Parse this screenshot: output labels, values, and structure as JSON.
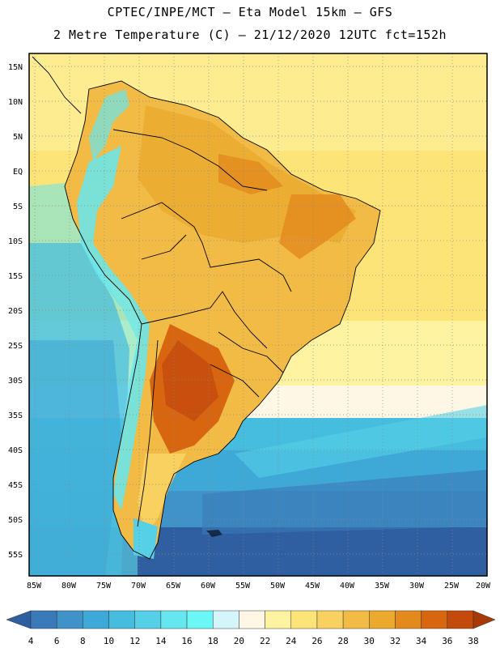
{
  "header": {
    "title_line1": "CPTEC/INPE/MCT –  Eta Model 15km – GFS",
    "title_line2": "2 Metre Temperature (C) – 21/12/2020 12UTC fct=152h"
  },
  "map": {
    "lat_labels": [
      "15N",
      "10N",
      "5N",
      "EQ",
      "5S",
      "10S",
      "15S",
      "20S",
      "25S",
      "30S",
      "35S",
      "40S",
      "45S",
      "50S",
      "55S"
    ],
    "lon_labels": [
      "85W",
      "80W",
      "75W",
      "70W",
      "65W",
      "60W",
      "55W",
      "50W",
      "45W",
      "40W",
      "35W",
      "30W",
      "25W",
      "20W"
    ]
  },
  "colorbar": {
    "labels": [
      "4",
      "6",
      "8",
      "10",
      "12",
      "14",
      "16",
      "18",
      "20",
      "22",
      "24",
      "26",
      "28",
      "30",
      "32",
      "34",
      "36",
      "38"
    ],
    "colors": [
      "#2f5fa0",
      "#3a7ab8",
      "#3f93c8",
      "#3ea8d6",
      "#46bcde",
      "#55d0e6",
      "#66e6ef",
      "#6cf7f7",
      "#d4f6fb",
      "#fff7e6",
      "#fef3a0",
      "#fde478",
      "#f9d160",
      "#f1bb45",
      "#ebaa2e",
      "#e48a1d",
      "#d86610",
      "#c44a0c",
      "#a83a08"
    ]
  }
}
